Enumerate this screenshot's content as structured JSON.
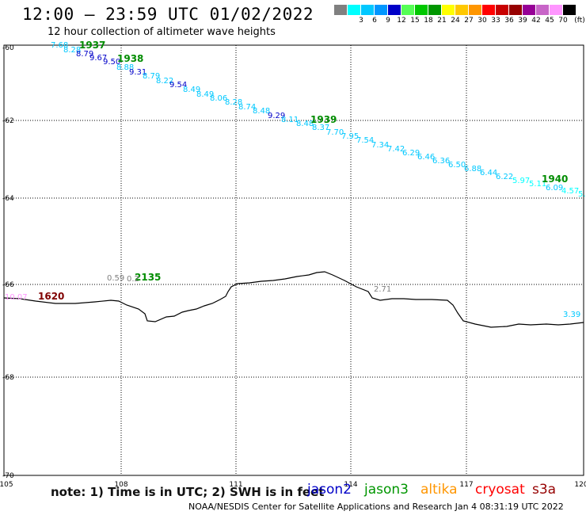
{
  "header": {
    "title": "12:00 – 23:59 UTC 01/02/2022",
    "subtitle": "12 hour collection of altimeter wave heights"
  },
  "legend": {
    "unit": "(ft)",
    "bins": [
      {
        "label": "",
        "color": "#808080"
      },
      {
        "label": "3",
        "color": "#00ffff"
      },
      {
        "label": "6",
        "color": "#00c8ff"
      },
      {
        "label": "9",
        "color": "#0096ff"
      },
      {
        "label": "12",
        "color": "#0000c8"
      },
      {
        "label": "15",
        "color": "#55ff55"
      },
      {
        "label": "18",
        "color": "#00c800"
      },
      {
        "label": "21",
        "color": "#009600"
      },
      {
        "label": "24",
        "color": "#ffff00"
      },
      {
        "label": "27",
        "color": "#ffc800"
      },
      {
        "label": "30",
        "color": "#ff9600"
      },
      {
        "label": "33",
        "color": "#ff0000"
      },
      {
        "label": "36",
        "color": "#c80000"
      },
      {
        "label": "39",
        "color": "#960000"
      },
      {
        "label": "42",
        "color": "#960096"
      },
      {
        "label": "45",
        "color": "#c864c8"
      },
      {
        "label": "70",
        "color": "#ff96ff"
      },
      {
        "label": "",
        "color": "#000000"
      }
    ]
  },
  "axes": {
    "lat_labels": [
      "-60",
      "-62",
      "-64",
      "-66",
      "-68",
      "-70"
    ],
    "lon_labels": [
      "105",
      "108",
      "111",
      "114",
      "117",
      "120"
    ]
  },
  "tracks": {
    "jason3_upper": [
      {
        "label": "7.68",
        "color": "#00c8ff"
      },
      {
        "label": "8.28",
        "color": "#00c8ff"
      },
      {
        "label": "8.79",
        "color": "#0000c8"
      },
      {
        "label": "9.67",
        "color": "#0000c8"
      },
      {
        "label": "9.50",
        "color": "#0000c8"
      },
      {
        "label": "8.88",
        "color": "#00c8ff"
      },
      {
        "label": "9.31",
        "color": "#0000c8"
      },
      {
        "label": "8.79",
        "color": "#00c8ff"
      },
      {
        "label": "8.22",
        "color": "#00c8ff"
      },
      {
        "label": "9.54",
        "color": "#0000c8"
      },
      {
        "label": "8.49",
        "color": "#00c8ff"
      },
      {
        "label": "8.49",
        "color": "#00c8ff"
      },
      {
        "label": "8.06",
        "color": "#00c8ff"
      },
      {
        "label": "8.28",
        "color": "#00c8ff"
      },
      {
        "label": "8.74",
        "color": "#00c8ff"
      },
      {
        "label": "8.48",
        "color": "#00c8ff"
      },
      {
        "label": "9.29",
        "color": "#0000c8"
      },
      {
        "label": "8.11",
        "color": "#00c8ff"
      },
      {
        "label": "8.48",
        "color": "#00c8ff"
      },
      {
        "label": "8.37",
        "color": "#00c8ff"
      },
      {
        "label": "7.70",
        "color": "#00c8ff"
      },
      {
        "label": "7.95",
        "color": "#00c8ff"
      },
      {
        "label": "7.54",
        "color": "#00c8ff"
      },
      {
        "label": "7.34",
        "color": "#00c8ff"
      },
      {
        "label": "7.42",
        "color": "#00c8ff"
      },
      {
        "label": "6.29",
        "color": "#00c8ff"
      },
      {
        "label": "6.46",
        "color": "#00c8ff"
      },
      {
        "label": "6.36",
        "color": "#00c8ff"
      },
      {
        "label": "6.50",
        "color": "#00c8ff"
      },
      {
        "label": "6.88",
        "color": "#00c8ff"
      },
      {
        "label": "6.44",
        "color": "#00c8ff"
      },
      {
        "label": "6.22",
        "color": "#00c8ff"
      },
      {
        "label": "5.97",
        "color": "#00ffff"
      },
      {
        "label": "5.11",
        "color": "#00ffff"
      },
      {
        "label": "6.09",
        "color": "#00c8ff"
      },
      {
        "label": "4.57",
        "color": "#00ffff"
      },
      {
        "label": "5.",
        "color": "#00ffff"
      }
    ],
    "time_labels": [
      {
        "label": "1937",
        "color": "#008c00"
      },
      {
        "label": "1938",
        "color": "#008c00"
      },
      {
        "label": "1939",
        "color": "#008c00"
      },
      {
        "label": "1940",
        "color": "#008c00"
      },
      {
        "label": "2135",
        "color": "#008c00"
      },
      {
        "label": "1620",
        "color": "#800000"
      }
    ],
    "misc_values": [
      {
        "label": "0.59",
        "color": "#808080"
      },
      {
        "label": "0.2",
        "color": "#808080"
      },
      {
        "label": "2.71",
        "color": "#808080"
      },
      {
        "label": "3.39",
        "color": "#00c8ff"
      },
      {
        "label": "10.07",
        "color": "#ff96ff"
      }
    ]
  },
  "footer": {
    "note": "note: 1) Time is in UTC; 2) SWH is in feet",
    "satellites": [
      {
        "name": "jason2",
        "color": "#0000c8"
      },
      {
        "name": "jason3",
        "color": "#009600"
      },
      {
        "name": "altika",
        "color": "#ff9600"
      },
      {
        "name": "cryosat",
        "color": "#ff0000"
      },
      {
        "name": "s3a",
        "color": "#960000"
      }
    ],
    "credit": "NOAA/NESDIS Center for Satellite Applications and Research   Jan  4 08:31:19 UTC 2022"
  }
}
